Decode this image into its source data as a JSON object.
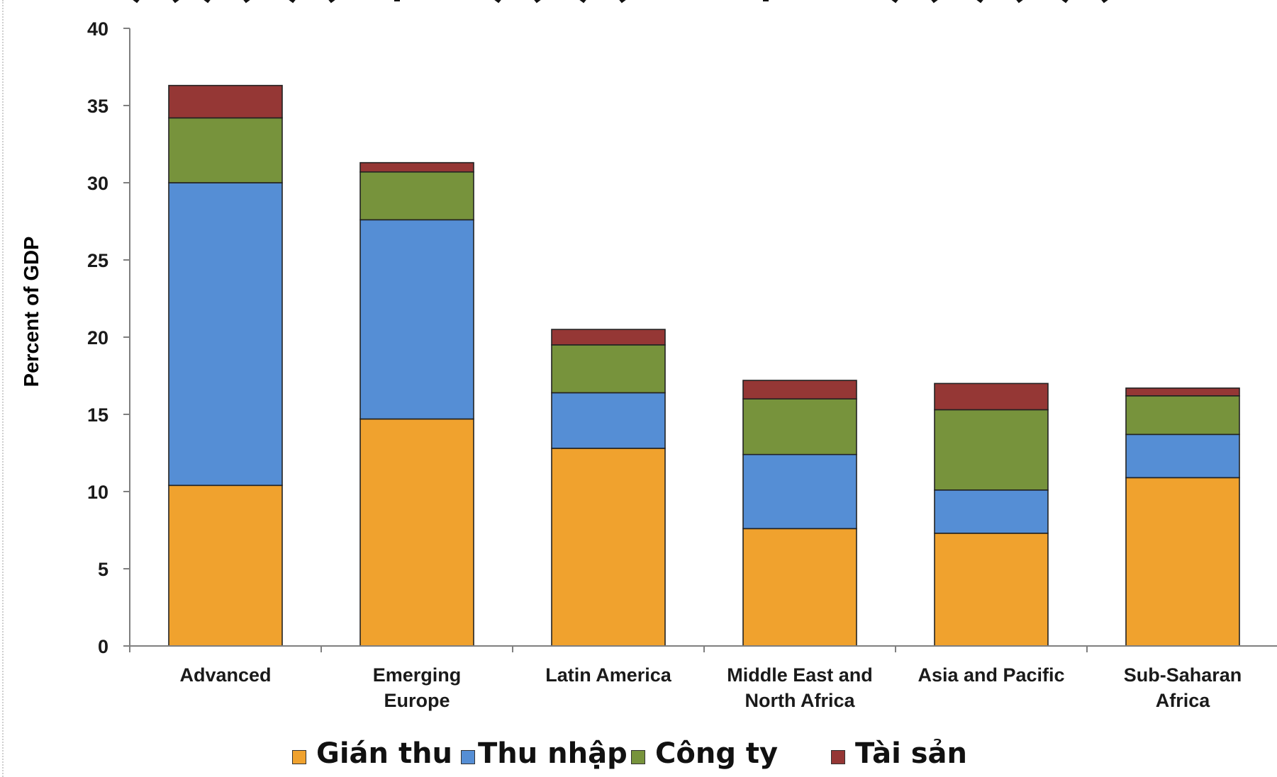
{
  "chart_data": {
    "type": "bar",
    "stacked": true,
    "ylabel": "Percent of GDP",
    "xlabel": "",
    "ylim": [
      0,
      40
    ],
    "yticks": [
      0,
      5,
      10,
      15,
      20,
      25,
      30,
      35,
      "40"
    ],
    "categories": [
      "Advanced",
      "Emerging\nEurope",
      "Latin America",
      "Middle East and\nNorth Africa",
      "Asia and Pacific",
      "Sub-Saharan\nAfrica"
    ],
    "series": [
      {
        "name": "Gián thu",
        "color": "#F0A22E",
        "values": [
          10.4,
          14.7,
          12.8,
          7.6,
          7.3,
          10.9
        ]
      },
      {
        "name": "Thu nhập",
        "color": "#558ED5",
        "values": [
          19.6,
          12.9,
          3.6,
          4.8,
          2.8,
          2.8
        ]
      },
      {
        "name": "Công ty",
        "color": "#77933C",
        "values": [
          4.2,
          3.1,
          3.1,
          3.6,
          5.2,
          2.5
        ]
      },
      {
        "name": "Tài sản",
        "color": "#953735",
        "values": [
          2.1,
          0.6,
          1.0,
          1.2,
          1.7,
          0.5
        ]
      }
    ],
    "legend_position": "bottom",
    "grid": false
  }
}
